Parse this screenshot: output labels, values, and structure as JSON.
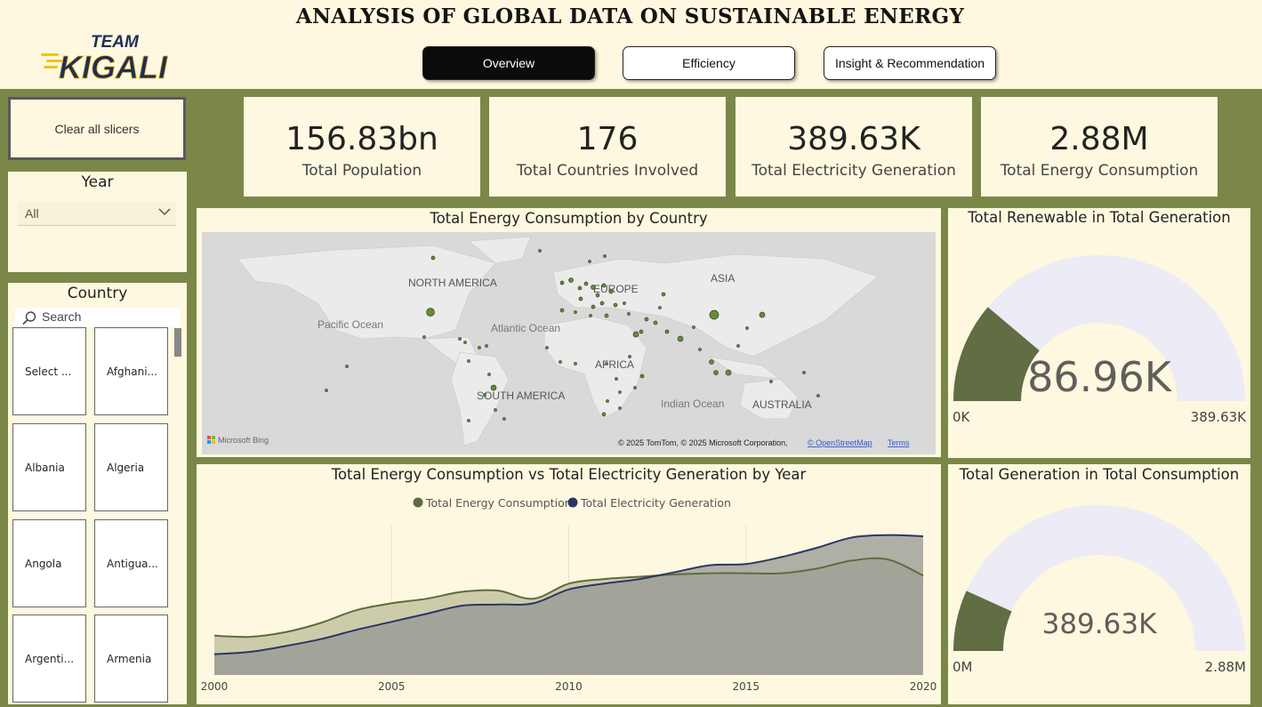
{
  "header": {
    "title": "ANALYSIS OF GLOBAL DATA ON SUSTAINABLE ENERGY",
    "logo_line1": "TEAM",
    "logo_line2": "KIGALI",
    "nav": [
      {
        "label": "Overview",
        "active": true
      },
      {
        "label": "Efficiency",
        "active": false
      },
      {
        "label": "Insight & Recommendation",
        "active": false
      }
    ]
  },
  "slicers": {
    "clear_label": "Clear all slicers",
    "year": {
      "title": "Year",
      "selected": "All",
      "icon": "chevron-down-icon"
    },
    "country": {
      "title": "Country",
      "search_placeholder": "Search",
      "search_icon": "search-icon",
      "items": [
        "Select ...",
        "Afghani...",
        "Albania",
        "Algeria",
        "Angola",
        "Antigua...",
        "Argenti...",
        "Armenia"
      ]
    }
  },
  "kpis": [
    {
      "value": "156.83bn",
      "label": "Total Population"
    },
    {
      "value": "176",
      "label": "Total Countries Involved"
    },
    {
      "value": "389.63K",
      "label": "Total Electricity Generation"
    },
    {
      "value": "2.88M",
      "label": "Total Energy Consumption"
    }
  ],
  "map": {
    "title": "Total Energy Consumption by Country",
    "labels": {
      "north_america": "NORTH AMERICA",
      "south_america": "SOUTH AMERICA",
      "europe": "EUROPE",
      "asia": "ASIA",
      "africa": "AFRICA",
      "australia": "AUSTRALIA",
      "pacific": "Pacific Ocean",
      "atlantic": "Atlantic Ocean",
      "indian": "Indian Ocean"
    },
    "brand": "Microsoft Bing",
    "copyright": "© 2025 TomTom, © 2025 Microsoft Corporation,",
    "osm_link": "© OpenStreetMap",
    "terms_link": "Terms",
    "colors": {
      "water": "#d9d9d9",
      "land": "#ebebeb",
      "bubble": "#6a8a3a"
    }
  },
  "gauges": [
    {
      "title": "Total Renewable in Total Generation",
      "value": 86.96,
      "value_label": "86.96K",
      "min_label": "0K",
      "max": 389.63,
      "max_label": "389.63K"
    },
    {
      "title": "Total Generation in Total Consumption",
      "value": 389.63,
      "value_label": "389.63K",
      "min_label": "0M",
      "max": 2880,
      "max_label": "2.88M"
    }
  ],
  "chart_data": {
    "type": "area",
    "title": "Total Energy Consumption vs Total Electricity Generation by Year",
    "xlabel": "",
    "ylabel": "",
    "x": [
      2000,
      2001,
      2002,
      2003,
      2004,
      2005,
      2006,
      2007,
      2008,
      2009,
      2010,
      2011,
      2012,
      2013,
      2014,
      2015,
      2016,
      2017,
      2018,
      2019,
      2020
    ],
    "x_ticks": [
      "2000",
      "2005",
      "2010",
      "2015",
      "2020"
    ],
    "legend_position": "top-center",
    "series": [
      {
        "name": "Total Energy Consumption",
        "color": "#5e6b3f",
        "fill": "#c9c9a8",
        "values": [
          0.34,
          0.33,
          0.37,
          0.45,
          0.56,
          0.62,
          0.66,
          0.72,
          0.73,
          0.66,
          0.79,
          0.83,
          0.85,
          0.87,
          0.88,
          0.88,
          0.88,
          0.92,
          0.99,
          1.0,
          0.86
        ]
      },
      {
        "name": "Total Electricity Generation",
        "color": "#2d3566",
        "fill": "#959793",
        "values": [
          0.18,
          0.2,
          0.25,
          0.31,
          0.39,
          0.46,
          0.53,
          0.6,
          0.61,
          0.62,
          0.74,
          0.79,
          0.83,
          0.89,
          0.95,
          0.96,
          1.02,
          1.1,
          1.19,
          1.21,
          1.2
        ]
      }
    ],
    "ylim": [
      0,
      1.3
    ]
  }
}
